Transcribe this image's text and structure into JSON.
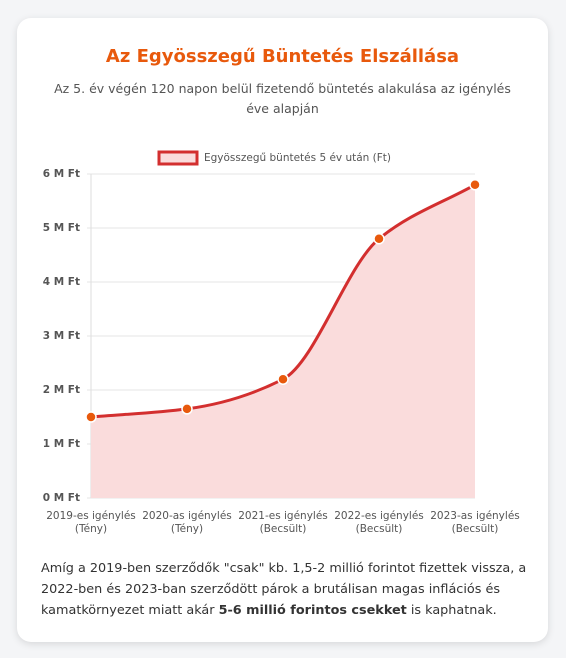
{
  "chart_data": {
    "type": "line",
    "title": "Az Egyösszegű Büntetés Elszállása",
    "subtitle": "Az 5. év végén 120 napon belül fizetendő büntetés alakulása az igénylés éve alapján",
    "categories": [
      [
        "2019-es igénylés",
        "(Tény)"
      ],
      [
        "2020-as igénylés",
        "(Tény)"
      ],
      [
        "2021-es igénylés",
        "(Becsült)"
      ],
      [
        "2022-es igénylés",
        "(Becsült)"
      ],
      [
        "2023-as igénylés",
        "(Becsült)"
      ]
    ],
    "series": [
      {
        "name": "Egyösszegű büntetés 5 év után (Ft)",
        "color": "#d32f2f",
        "fill": "#fadcdc",
        "point_color": "#e8590c",
        "values": [
          1500000,
          1650000,
          2200000,
          4800000,
          5800000
        ]
      }
    ],
    "ylim": [
      0,
      6000000
    ],
    "yticks": [
      {
        "value": 0,
        "label": "0 M Ft"
      },
      {
        "value": 1000000,
        "label": "1 M Ft"
      },
      {
        "value": 2000000,
        "label": "2 M Ft"
      },
      {
        "value": 3000000,
        "label": "3 M Ft"
      },
      {
        "value": 4000000,
        "label": "4 M Ft"
      },
      {
        "value": 5000000,
        "label": "5 M Ft"
      },
      {
        "value": 6000000,
        "label": "6 M Ft"
      }
    ],
    "grid": true,
    "legend": "top",
    "note": [
      "Amíg a 2019-ben szerződők \"csak\" kb. 1,5-2 millió forintot fizettek vissza, a 2022-ben és 2023-ban szerződött párok a brutálisan magas inflációs és kamatkörnyezet miatt akár ",
      "5-6 millió forintos csekket",
      " is kaphatnak."
    ]
  }
}
